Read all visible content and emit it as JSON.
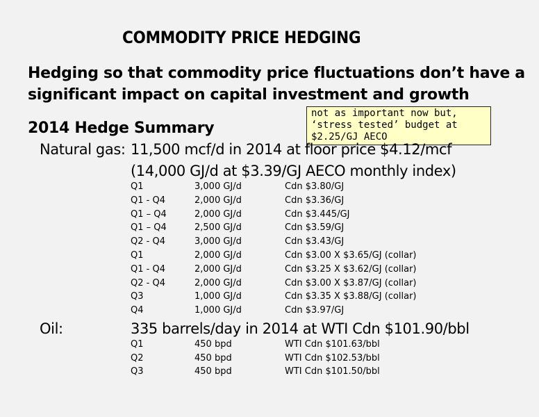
{
  "title": "COMMODITY PRICE HEDGING",
  "subtitle": {
    "line1": "Hedging so that commodity price fluctuations don’t have a",
    "line2": "significant impact on capital investment and growth"
  },
  "note": "not as important now but, ‘stress tested’ budget at $2.25/GJ AECO",
  "summary_heading": "2014 Hedge Summary",
  "natural_gas": {
    "label": "Natural gas:",
    "line1": "11,500 mcf/d in 2014 at floor price $4.12/mcf",
    "line2": "(14,000 GJ/d at $3.39/GJ AECO monthly index)",
    "rows": [
      {
        "period": "Q1",
        "volume": "3,000 GJ/d",
        "price": "Cdn $3.80/GJ"
      },
      {
        "period": "Q1 - Q4",
        "volume": "2,000 GJ/d",
        "price": "Cdn $3.36/GJ"
      },
      {
        "period": "Q1 – Q4",
        "volume": "2,000 GJ/d",
        "price": "Cdn $3.445/GJ"
      },
      {
        "period": "Q1 – Q4",
        "volume": "2,500 GJ/d",
        "price": "Cdn $3.59/GJ"
      },
      {
        "period": "Q2 - Q4",
        "volume": "3,000 GJ/d",
        "price": "Cdn $3.43/GJ"
      },
      {
        "period": "Q1",
        "volume": "2,000 GJ/d",
        "price": "Cdn $3.00 X $3.65/GJ (collar)"
      },
      {
        "period": "Q1 - Q4",
        "volume": "2,000 GJ/d",
        "price": "Cdn $3.25 X $3.62/GJ (collar)"
      },
      {
        "period": "Q2 - Q4",
        "volume": "2,000 GJ/d",
        "price": "Cdn $3.00 X $3.87/GJ (collar)"
      },
      {
        "period": "Q3",
        "volume": "1,000 GJ/d",
        "price": "Cdn $3.35 X $3.88/GJ (collar)"
      },
      {
        "period": "Q4",
        "volume": "1,000 GJ/d",
        "price": "Cdn $3.97/GJ"
      }
    ]
  },
  "oil": {
    "label": "Oil:",
    "line1": "335 barrels/day in 2014 at WTI Cdn $101.90/bbl",
    "rows": [
      {
        "period": "Q1",
        "volume": "450 bpd",
        "price": "WTI Cdn $101.63/bbl"
      },
      {
        "period": "Q2",
        "volume": "450 bpd",
        "price": "WTI Cdn $102.53/bbl"
      },
      {
        "period": "Q3",
        "volume": "450 bpd",
        "price": "WTI Cdn $101.50/bbl"
      }
    ]
  }
}
